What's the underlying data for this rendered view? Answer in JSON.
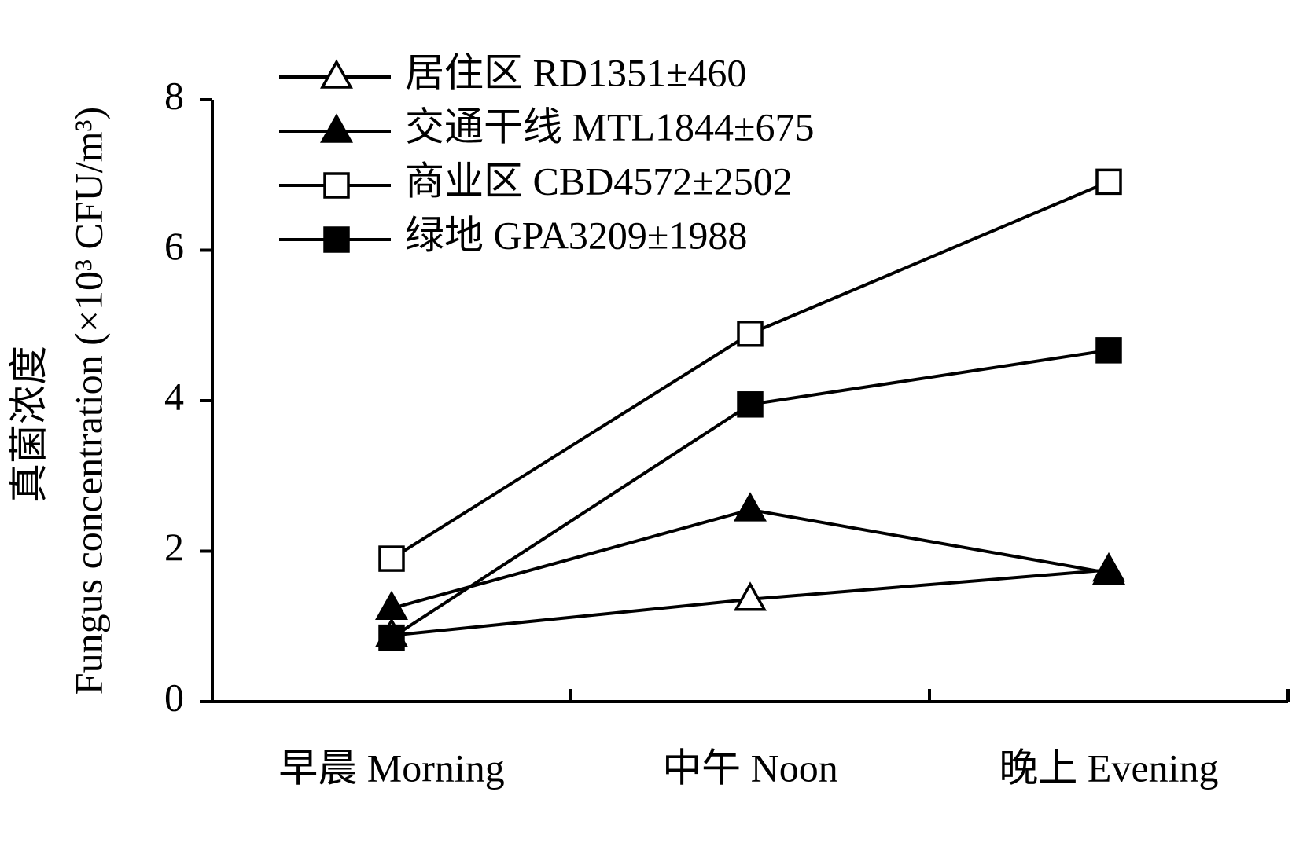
{
  "chart_data": {
    "type": "line",
    "y_label_zh": "真菌浓度",
    "y_label": "Fungus concentration (×10³ CFU/m³)",
    "categories": [
      "早晨 Morning",
      "中午 Noon",
      "晚上 Evening"
    ],
    "ylim": [
      0,
      8
    ],
    "yticks": [
      0,
      2,
      4,
      6,
      8
    ],
    "series": [
      {
        "name": "居住区 RD1351±460",
        "color": "#000000",
        "marker": "open-triangle",
        "values": [
          0.88,
          1.36,
          1.75
        ]
      },
      {
        "name": "交通干线 MTL1844±675",
        "color": "#000000",
        "marker": "filled-triangle",
        "values": [
          1.24,
          2.55,
          1.71
        ]
      },
      {
        "name": "商业区 CBD4572±2502",
        "color": "#000000",
        "marker": "open-square",
        "values": [
          1.9,
          4.89,
          6.91
        ]
      },
      {
        "name": "绿地 GPA3209±1988",
        "color": "#000000",
        "marker": "filled-square",
        "values": [
          0.85,
          3.95,
          4.67
        ]
      }
    ]
  }
}
